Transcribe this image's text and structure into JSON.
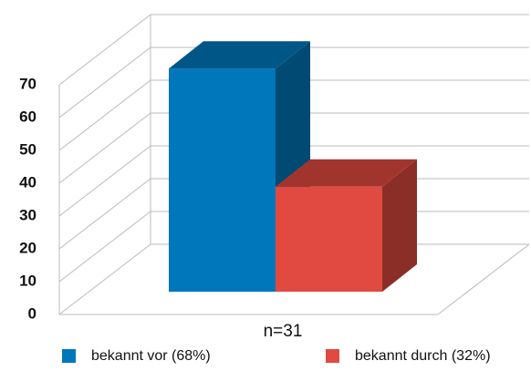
{
  "chart_data": {
    "type": "bar3d",
    "categories": [
      "n=31"
    ],
    "series": [
      {
        "name": "bekannt vor (68%)",
        "color": "#0077bb",
        "values": [
          68
        ]
      },
      {
        "name": "bekannt durch (32%)",
        "color": "#e04a40",
        "values": [
          32
        ]
      }
    ],
    "ylim": [
      0,
      70
    ],
    "yticks": [
      0,
      10,
      20,
      30,
      40,
      50,
      60,
      70
    ],
    "grid": true
  }
}
